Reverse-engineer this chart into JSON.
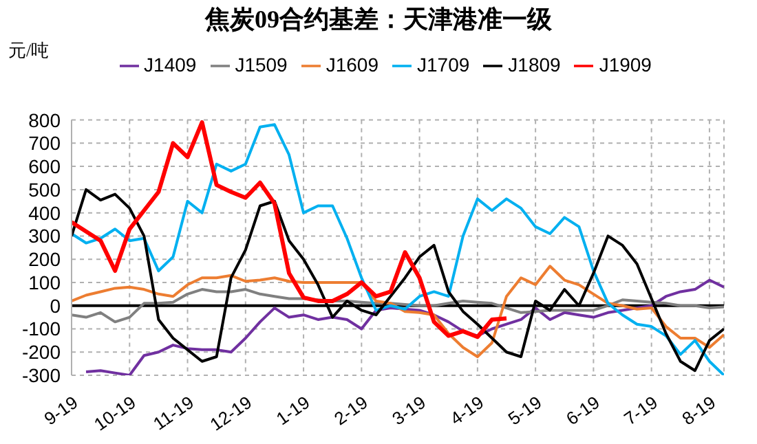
{
  "chart_data": {
    "type": "line",
    "title": "焦炭09合约基差：天津港准一级",
    "ylabel": "元/吨",
    "legend": "top",
    "grid": true,
    "marker": "none",
    "line_style": "solid",
    "categories": [
      "9-19",
      null,
      null,
      null,
      "10-19",
      null,
      null,
      null,
      "11-19",
      null,
      null,
      null,
      "12-19",
      null,
      null,
      null,
      "1-19",
      null,
      null,
      null,
      "2-19",
      null,
      null,
      null,
      "3-19",
      null,
      null,
      null,
      "4-19",
      null,
      null,
      null,
      "5-19",
      null,
      null,
      null,
      "6-19",
      null,
      null,
      null,
      "7-19",
      null,
      null,
      null,
      "8-19",
      null
    ],
    "ylim": [
      -300,
      800
    ],
    "yticks": [
      -300,
      -200,
      -100,
      0,
      100,
      200,
      300,
      400,
      500,
      600,
      700,
      800
    ],
    "ref_lines": [
      {
        "axis": "y",
        "value": 0,
        "color": "#000000"
      }
    ],
    "series": [
      {
        "name": "J1409",
        "color": "#7030a0",
        "values": [
          null,
          -285,
          -280,
          -290,
          -300,
          -215,
          -200,
          -170,
          -185,
          -190,
          -190,
          -200,
          -140,
          -70,
          -10,
          -50,
          -40,
          -60,
          -50,
          -60,
          -100,
          -20,
          -10,
          -15,
          -20,
          -40,
          -70,
          -110,
          -130,
          -100,
          -80,
          -60,
          -10,
          -60,
          -30,
          -40,
          -50,
          -30,
          -20,
          -10,
          0,
          40,
          60,
          70,
          110,
          80
        ]
      },
      {
        "name": "J1509",
        "color": "#808080",
        "values": [
          -40,
          -50,
          -30,
          -70,
          -50,
          10,
          10,
          15,
          50,
          70,
          60,
          60,
          70,
          50,
          40,
          30,
          30,
          25,
          20,
          20,
          15,
          10,
          10,
          5,
          0,
          0,
          10,
          20,
          15,
          10,
          -10,
          -30,
          -25,
          -20,
          -20,
          -20,
          -20,
          0,
          25,
          20,
          15,
          10,
          0,
          0,
          -10,
          -5
        ]
      },
      {
        "name": "J1609",
        "color": "#ed7d31",
        "values": [
          20,
          45,
          60,
          75,
          80,
          70,
          50,
          40,
          90,
          120,
          120,
          130,
          105,
          110,
          120,
          105,
          100,
          100,
          100,
          100,
          100,
          20,
          10,
          -25,
          -30,
          -40,
          -120,
          -180,
          -220,
          -160,
          40,
          120,
          90,
          170,
          110,
          90,
          50,
          10,
          0,
          -15,
          -10,
          -90,
          -140,
          -140,
          -180,
          -125
        ]
      },
      {
        "name": "J1709",
        "color": "#00b0f0",
        "values": [
          310,
          270,
          290,
          330,
          280,
          290,
          150,
          210,
          450,
          400,
          610,
          580,
          610,
          770,
          780,
          650,
          400,
          430,
          430,
          290,
          120,
          -20,
          0,
          -15,
          40,
          60,
          40,
          300,
          460,
          410,
          460,
          420,
          340,
          310,
          380,
          340,
          150,
          10,
          -40,
          -80,
          -90,
          -130,
          -210,
          -150,
          -240,
          -300
        ]
      },
      {
        "name": "J1809",
        "color": "#000000",
        "values": [
          300,
          500,
          455,
          480,
          420,
          300,
          -60,
          -140,
          -190,
          -240,
          -220,
          120,
          240,
          430,
          450,
          280,
          200,
          90,
          -50,
          20,
          -20,
          -40,
          40,
          120,
          210,
          260,
          60,
          -25,
          -80,
          -140,
          -200,
          -220,
          20,
          -20,
          70,
          0,
          140,
          300,
          260,
          180,
          30,
          -120,
          -240,
          -280,
          -150,
          -100
        ]
      },
      {
        "name": "J1909",
        "color": "#ff0000",
        "values": [
          360,
          320,
          280,
          150,
          330,
          410,
          490,
          700,
          640,
          790,
          520,
          490,
          465,
          530,
          440,
          140,
          35,
          20,
          20,
          50,
          100,
          40,
          60,
          230,
          120,
          -70,
          -130,
          -110,
          -135,
          -60,
          -55,
          null,
          null,
          null,
          null,
          null,
          null,
          null,
          null,
          null,
          null,
          null,
          null,
          null,
          null,
          null
        ]
      }
    ]
  }
}
